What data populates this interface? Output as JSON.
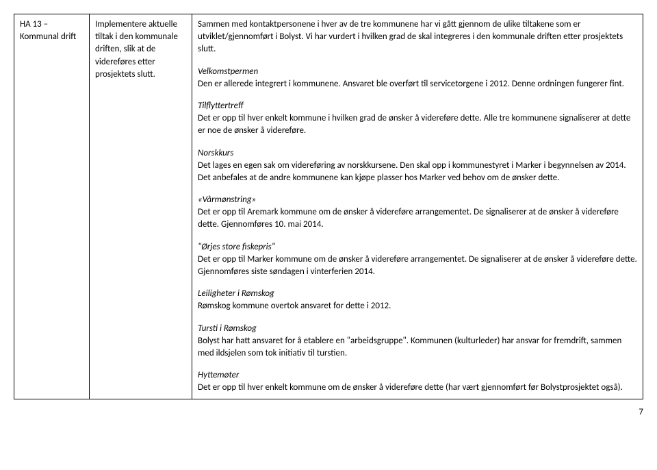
{
  "row": {
    "col1": "HA 13 – Kommunal drift",
    "col2": "Implementere aktuelle tiltak i den kommunale driften, slik at de videreføres etter prosjektets slutt.",
    "intro1": "Sammen med kontaktpersonene i hver av de tre kommunene har vi gått gjennom de ulike tiltakene som er utviklet/gjennomført i Bolyst. Vi har vurdert i hvilken grad de skal integreres i den kommunale driften etter prosjektets slutt.",
    "sections": [
      {
        "title": "Velkomstpermen",
        "body": "Den er allerede integrert i kommunene. Ansvaret ble overført til servicetorgene i 2012. Denne ordningen fungerer fint."
      },
      {
        "title": "Tilflyttertreff",
        "body": "Det er opp til hver enkelt kommune i hvilken grad de ønsker å videreføre dette. Alle tre kommunene signaliserer at dette er noe de ønsker å videreføre."
      },
      {
        "title": "Norskkurs",
        "body": "Det lages en egen sak om videreføring av norskkursene. Den skal opp i kommunestyret i Marker i begynnelsen av 2014. Det anbefales at de andre kommunene kan kjøpe plasser hos Marker ved behov om de ønsker dette."
      },
      {
        "title": "«Vårmønstring»",
        "body": "Det er opp til Aremark kommune om de ønsker å videreføre arrangementet. De signaliserer at de ønsker å videreføre dette. Gjennomføres 10. mai 2014."
      },
      {
        "title": "\"Ørjes store fiskepris\"",
        "body": "Det er opp til Marker kommune om de ønsker å videreføre arrangementet. De signaliserer at de ønsker å videreføre dette. Gjennomføres siste søndagen i vinterferien 2014."
      },
      {
        "title": "Leiligheter i Rømskog",
        "body": "Rømskog kommune overtok ansvaret for dette i 2012."
      },
      {
        "title": "Tursti i Rømskog",
        "body": "Bolyst har hatt ansvaret for å etablere en \"arbeidsgruppe\". Kommunen (kulturleder) har ansvar for fremdrift, sammen med ildsjelen som tok initiativ til turstien."
      },
      {
        "title": "Hyttemøter",
        "body": "Det er opp til hver enkelt kommune om de ønsker å videreføre dette (har vært gjennomført før Bolystprosjektet også)."
      }
    ]
  },
  "pageNumber": "7"
}
